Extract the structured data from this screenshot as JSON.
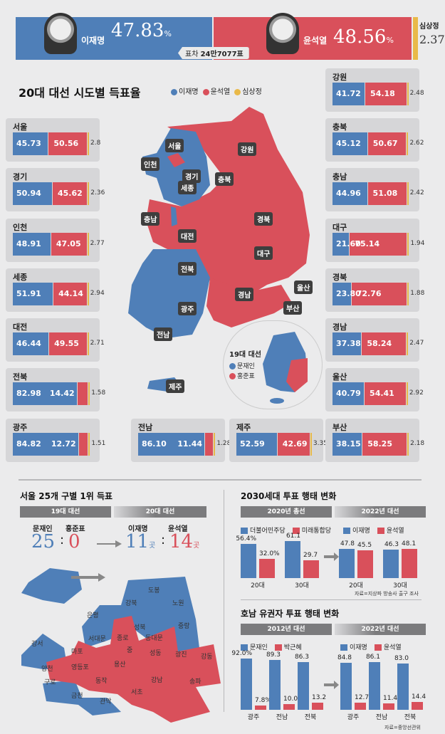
{
  "banner": {
    "candidate_blue": {
      "name": "이재명",
      "pct": "47.83",
      "unit": "%"
    },
    "candidate_red": {
      "name": "윤석열",
      "pct": "48.56",
      "unit": "%"
    },
    "candidate_yellow": {
      "name": "심상정",
      "pct": "2.37"
    },
    "gap_label": "표차",
    "gap_value": "24만7077표",
    "colors": {
      "blue": "#4f7fb8",
      "red": "#d9505b",
      "yellow": "#e9b949"
    }
  },
  "regional": {
    "title": "20대 대선 시도별 득표율",
    "legend": [
      "이재명",
      "윤석열",
      "심상정"
    ],
    "regions": [
      {
        "name": "서울",
        "lee": 45.73,
        "yoon": 50.56,
        "sim": 2.8
      },
      {
        "name": "경기",
        "lee": 50.94,
        "yoon": 45.62,
        "sim": 2.36
      },
      {
        "name": "인천",
        "lee": 48.91,
        "yoon": 47.05,
        "sim": 2.77
      },
      {
        "name": "세종",
        "lee": 51.91,
        "yoon": 44.14,
        "sim": 2.94
      },
      {
        "name": "대전",
        "lee": 46.44,
        "yoon": 49.55,
        "sim": 2.71
      },
      {
        "name": "전북",
        "lee": 82.98,
        "yoon": 14.42,
        "sim": 1.58
      },
      {
        "name": "광주",
        "lee": 84.82,
        "yoon": 12.72,
        "sim": 1.51
      },
      {
        "name": "전남",
        "lee": 86.1,
        "yoon": 11.44,
        "sim": 1.28
      },
      {
        "name": "제주",
        "lee": 52.59,
        "yoon": 42.69,
        "sim": 3.35
      },
      {
        "name": "강원",
        "lee": 41.72,
        "yoon": 54.18,
        "sim": 2.48
      },
      {
        "name": "충북",
        "lee": 45.12,
        "yoon": 50.67,
        "sim": 2.62
      },
      {
        "name": "충남",
        "lee": 44.96,
        "yoon": 51.08,
        "sim": 2.42
      },
      {
        "name": "대구",
        "lee": 21.6,
        "yoon": 75.14,
        "sim": 1.94
      },
      {
        "name": "경북",
        "lee": 23.8,
        "yoon": 72.76,
        "sim": 1.88
      },
      {
        "name": "경남",
        "lee": 37.38,
        "yoon": 58.24,
        "sim": 2.47
      },
      {
        "name": "울산",
        "lee": 40.79,
        "yoon": 54.41,
        "sim": 2.92
      },
      {
        "name": "부산",
        "lee": 38.15,
        "yoon": 58.25,
        "sim": 2.18
      }
    ],
    "map_labels": [
      "서울",
      "인천",
      "경기",
      "강원",
      "충북",
      "충남",
      "세종",
      "대전",
      "경북",
      "대구",
      "전북",
      "울산",
      "경남",
      "부산",
      "광주",
      "전남",
      "제주"
    ],
    "inset": {
      "title": "19대 대선",
      "legend": [
        "문재인",
        "홍준표"
      ]
    }
  },
  "seoul": {
    "title": "서울 25개 구별 1위 득표",
    "header_left": "19대 대선",
    "header_right": "20대 대선",
    "left": {
      "a_name": "문재인",
      "b_name": "홍준표",
      "a_val": "25",
      "b_val": "0"
    },
    "right": {
      "a_name": "이재명",
      "b_name": "윤석열",
      "a_val": "11",
      "b_val": "14",
      "unit": "곳"
    },
    "colon": ":",
    "districts_blue": [
      "도봉",
      "강북",
      "노원",
      "은평",
      "성북",
      "중랑",
      "서대문",
      "강서",
      "구로",
      "금천",
      "관악"
    ],
    "districts_red": [
      "종로",
      "동대문",
      "마포",
      "중",
      "성동",
      "광진",
      "강동",
      "양천",
      "영등포",
      "용산",
      "동작",
      "강남",
      "송파",
      "서초"
    ]
  },
  "chart_data": [
    {
      "type": "bar",
      "title": "2030세대 투표 행태 변화",
      "header_left": "2020년 총선",
      "header_right": "2022년 대선",
      "groups": [
        {
          "label": "2020년 총선",
          "legend": [
            "더불어민주당",
            "미래통합당"
          ],
          "categories": [
            "20대",
            "30대"
          ],
          "series": [
            {
              "name": "더불어민주당",
              "values": [
                56.4,
                61.1
              ]
            },
            {
              "name": "미래통합당",
              "values": [
                32.0,
                29.7
              ]
            }
          ],
          "value_labels": [
            [
              "56.4%",
              "61.1"
            ],
            [
              "32.0%",
              "29.7"
            ]
          ]
        },
        {
          "label": "2022년 대선",
          "legend": [
            "이재명",
            "윤석열"
          ],
          "categories": [
            "20대",
            "30대"
          ],
          "series": [
            {
              "name": "이재명",
              "values": [
                47.8,
                46.3
              ]
            },
            {
              "name": "윤석열",
              "values": [
                45.5,
                48.1
              ]
            }
          ],
          "value_labels": [
            [
              "47.8",
              "46.3"
            ],
            [
              "45.5",
              "48.1"
            ]
          ]
        }
      ],
      "source": "자료=지상파 방송사 출구 조사",
      "ylim": [
        0,
        70
      ]
    },
    {
      "type": "bar",
      "title": "호남 유권자 투표 행태 변화",
      "header_left": "2012년 대선",
      "header_right": "2022년 대선",
      "groups": [
        {
          "label": "2012년 대선",
          "legend": [
            "문재인",
            "박근혜"
          ],
          "categories": [
            "광주",
            "전남",
            "전북"
          ],
          "series": [
            {
              "name": "문재인",
              "values": [
                92.0,
                89.3,
                86.3
              ]
            },
            {
              "name": "박근혜",
              "values": [
                7.8,
                10.0,
                13.2
              ]
            }
          ],
          "value_labels": [
            [
              "92.0%",
              "89.3",
              "86.3"
            ],
            [
              "7.8%",
              "10.0",
              "13.2"
            ]
          ]
        },
        {
          "label": "2022년 대선",
          "legend": [
            "이재명",
            "윤석열"
          ],
          "categories": [
            "광주",
            "전남",
            "전북"
          ],
          "series": [
            {
              "name": "이재명",
              "values": [
                84.8,
                86.1,
                83.0
              ]
            },
            {
              "name": "윤석열",
              "values": [
                12.7,
                11.4,
                14.4
              ]
            }
          ],
          "value_labels": [
            [
              "84.8",
              "86.1",
              "83.0"
            ],
            [
              "12.7",
              "11.4",
              "14.4"
            ]
          ]
        }
      ],
      "source": "자료=중앙선관위",
      "ylim": [
        0,
        100
      ]
    }
  ]
}
